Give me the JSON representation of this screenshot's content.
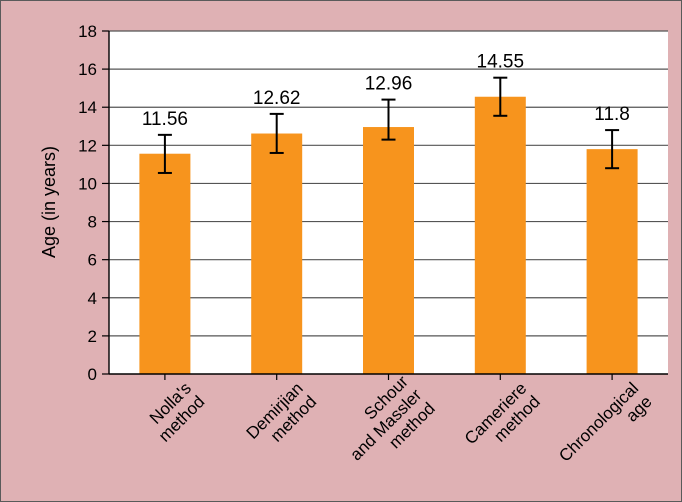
{
  "chart_data": {
    "type": "bar",
    "categories": [
      [
        "Nolla's",
        "method"
      ],
      [
        "Demirjian",
        "method"
      ],
      [
        "Schour",
        "and Massler",
        "method"
      ],
      [
        "Cameriere",
        "method"
      ],
      [
        "Chronological",
        "age"
      ]
    ],
    "values": [
      11.56,
      12.62,
      12.96,
      14.55,
      11.8
    ],
    "value_labels": [
      "11.56",
      "12.62",
      "12.96",
      "14.55",
      "11.8"
    ],
    "error_bars": [
      [
        10.55,
        12.55
      ],
      [
        11.6,
        13.65
      ],
      [
        12.3,
        14.4
      ],
      [
        13.55,
        15.55
      ],
      [
        10.8,
        12.8
      ]
    ],
    "title": "",
    "xlabel": "",
    "ylabel": "Age (in years)",
    "ylim": [
      0,
      18
    ],
    "yticks": [
      "0",
      "2",
      "4",
      "6",
      "8",
      "10",
      "12",
      "14",
      "16",
      "18"
    ],
    "grid": true,
    "legend": "none",
    "colors": {
      "bar": "#f7941d",
      "background": "#dfb1b4",
      "plot_background": "#ffffff",
      "grid": "#555555"
    }
  }
}
